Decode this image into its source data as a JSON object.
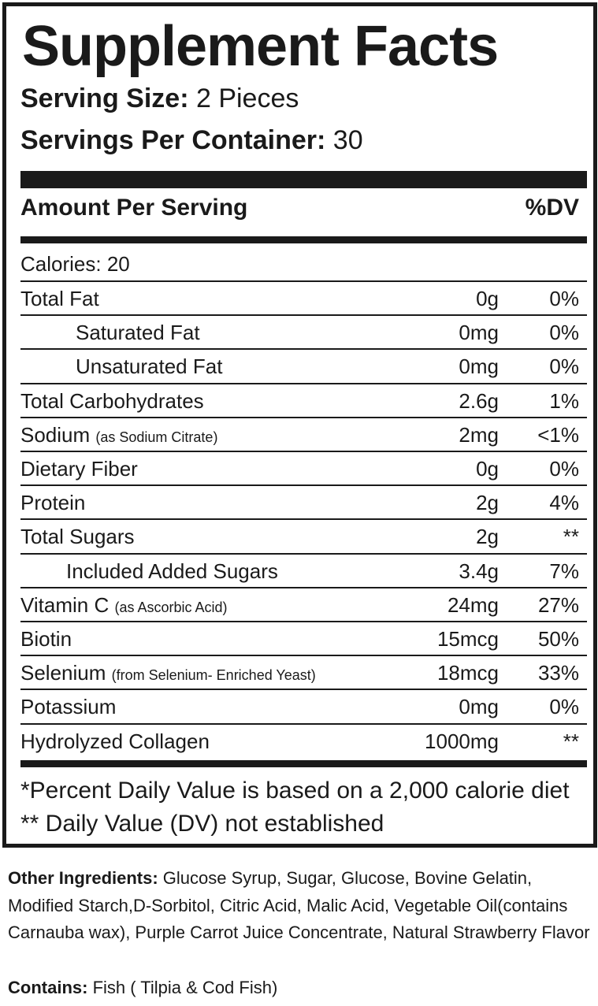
{
  "title": "Supplement Facts",
  "serving_size": {
    "label": "Serving Size:",
    "value": " 2 Pieces"
  },
  "servings_per_container": {
    "label": "Servings Per Container:",
    "value": " 30"
  },
  "header": {
    "amount_per_serving": "Amount Per Serving",
    "dv": "%DV"
  },
  "calories": "Calories: 20",
  "nutrients": [
    {
      "name": "Total Fat",
      "note": "",
      "amount": "0g",
      "dv": "0%",
      "indent": 0
    },
    {
      "name": "Saturated Fat",
      "note": "",
      "amount": "0mg",
      "dv": "0%",
      "indent": 1
    },
    {
      "name": "Unsaturated Fat",
      "note": "",
      "amount": "0mg",
      "dv": "0%",
      "indent": 1
    },
    {
      "name": "Total Carbohydrates",
      "note": "",
      "amount": "2.6g",
      "dv": "1%",
      "indent": 0
    },
    {
      "name": "Sodium",
      "note": "(as Sodium Citrate)",
      "amount": "2mg",
      "dv": "<1%",
      "indent": 0
    },
    {
      "name": "Dietary Fiber",
      "note": "",
      "amount": "0g",
      "dv": "0%",
      "indent": 0
    },
    {
      "name": "Protein",
      "note": "",
      "amount": "2g",
      "dv": "4%",
      "indent": 0
    },
    {
      "name": "Total Sugars",
      "note": "",
      "amount": "2g",
      "dv": "**",
      "indent": 0
    },
    {
      "name": "Included Added Sugars",
      "note": "",
      "amount": "3.4g",
      "dv": "7%",
      "indent": 2
    },
    {
      "name": "Vitamin C",
      "note": "(as Ascorbic Acid)",
      "amount": "24mg",
      "dv": "27%",
      "indent": 0
    },
    {
      "name": "Biotin",
      "note": "",
      "amount": "15mcg",
      "dv": "50%",
      "indent": 0
    },
    {
      "name": "Selenium",
      "note": "(from Selenium- Enriched Yeast)",
      "amount": "18mcg",
      "dv": "33%",
      "indent": 0
    },
    {
      "name": "Potassium",
      "note": "",
      "amount": "0mg",
      "dv": "0%",
      "indent": 0
    },
    {
      "name": "Hydrolyzed Collagen",
      "note": "",
      "amount": "1000mg",
      "dv": "**",
      "indent": 0
    }
  ],
  "footnotes": {
    "percent_dv": "*Percent Daily Value is based on a 2,000 calorie diet",
    "not_established": "** Daily Value (DV) not established"
  },
  "other_ingredients": {
    "label": "Other Ingredients:",
    "text": " Glucose Syrup, Sugar, Glucose, Bovine Gelatin, Modified Starch,D-Sorbitol, Citric Acid, Malic Acid, Vegetable Oil(contains Carnauba wax), Purple Carrot Juice Concentrate, Natural Strawberry Flavor"
  },
  "contains": {
    "label": "Contains:",
    "text": " Fish ( Tilpia & Cod Fish)"
  },
  "colors": {
    "ink": "#1a1a1a",
    "background": "#ffffff"
  }
}
